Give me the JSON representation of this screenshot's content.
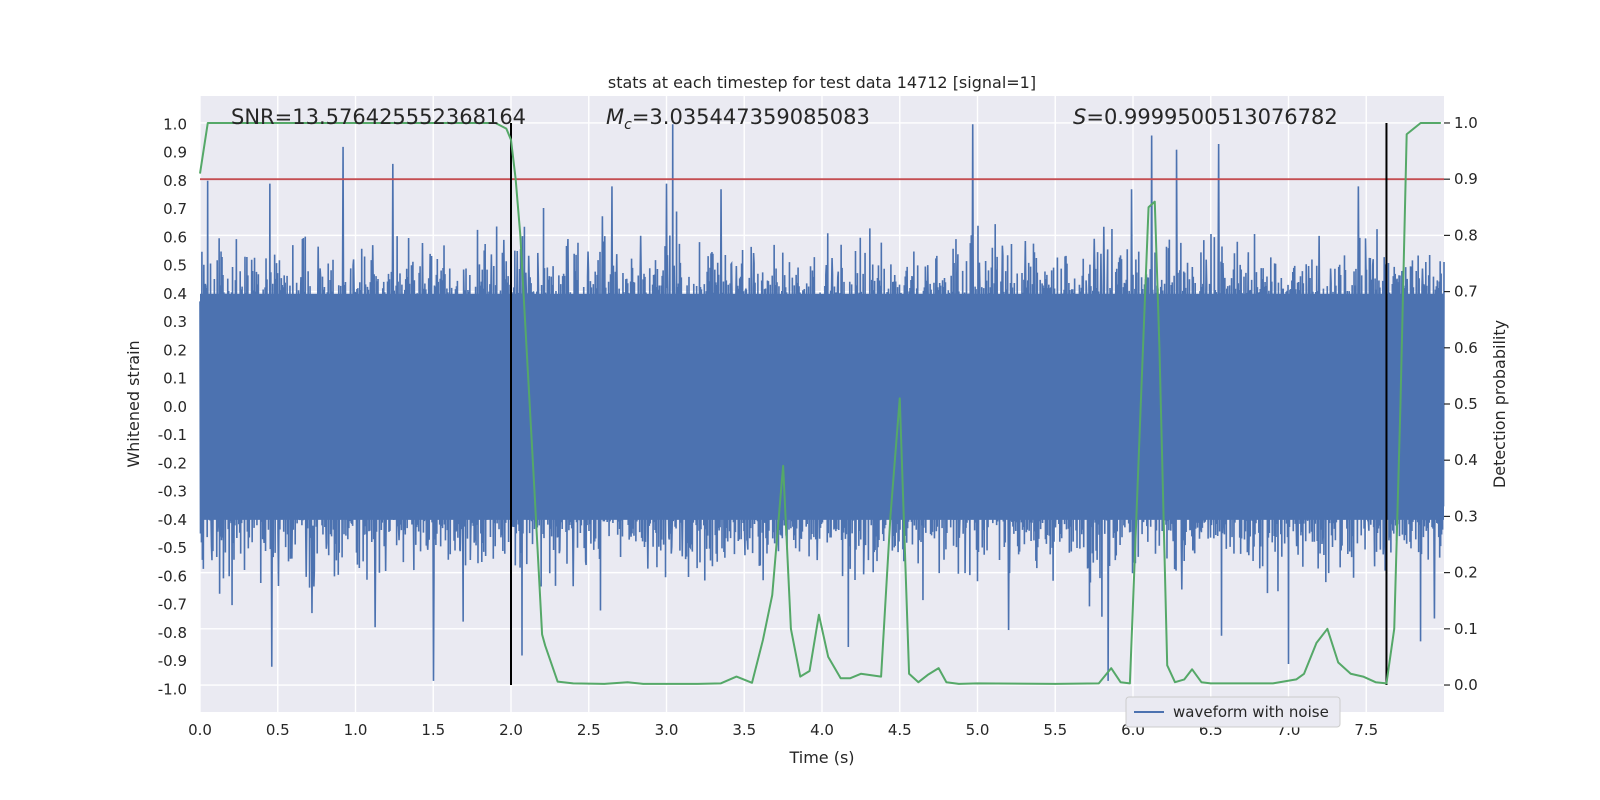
{
  "chart_data": {
    "type": "line",
    "title": "stats at each timestep for test data 14712 [signal=1]",
    "xlabel": "Time (s)",
    "ylabel": "Whitened strain",
    "y2label": "Detection probability",
    "xlim": [
      0.0,
      8.0
    ],
    "ylim": [
      -1.08,
      1.1
    ],
    "y2lim": [
      -0.048,
      1.048
    ],
    "xticks": [
      0.0,
      0.5,
      1.0,
      1.5,
      2.0,
      2.5,
      3.0,
      3.5,
      4.0,
      4.5,
      5.0,
      5.5,
      6.0,
      6.5,
      7.0,
      7.5
    ],
    "xtick_labels": [
      "0.0",
      "0.5",
      "1.0",
      "1.5",
      "2.0",
      "2.5",
      "3.0",
      "3.5",
      "4.0",
      "4.5",
      "5.0",
      "5.5",
      "6.0",
      "6.5",
      "7.0",
      "7.5"
    ],
    "yticks": [
      1.0,
      0.9,
      0.8,
      0.7,
      0.6,
      0.5,
      0.4,
      0.3,
      0.2,
      0.1,
      0.0,
      -0.1,
      -0.2,
      -0.3,
      -0.4,
      -0.5,
      -0.6,
      -0.7,
      -0.8,
      -0.9,
      -1.0
    ],
    "ytick_labels": [
      "1.0",
      "0.9",
      "0.8",
      "0.7",
      "0.6",
      "0.5",
      "0.4",
      "0.3",
      "0.2",
      "0.1",
      "0.0",
      "-0.1",
      "-0.2",
      "-0.3",
      "-0.4",
      "-0.5",
      "-0.6",
      "-0.7",
      "-0.8",
      "-0.9",
      "-1.0"
    ],
    "y2ticks": [
      1.0,
      0.9,
      0.8,
      0.7,
      0.6,
      0.5,
      0.4,
      0.3,
      0.2,
      0.1,
      0.0
    ],
    "y2tick_labels": [
      "1.0",
      "0.9",
      "0.8",
      "0.7",
      "0.6",
      "0.5",
      "0.4",
      "0.3",
      "0.2",
      "0.1",
      "0.0"
    ],
    "grid": true,
    "legend_location": "lower-right",
    "annotations": {
      "snr": "SNR=13.576425552368164",
      "mc_symbol": "M",
      "mc_subscript": "c",
      "mc_value": "=3.035447359085083",
      "s_symbol": "S",
      "s_value": "=0.9999500513076782"
    },
    "series": [
      {
        "name": "waveform with noise",
        "color": "#4c72b0",
        "axis": "left",
        "kind": "noise",
        "typical_envelope": [
          -0.4,
          0.4
        ],
        "peaks": [
          {
            "x": 0.46,
            "y": -0.92
          },
          {
            "x": 0.92,
            "y": 0.92
          },
          {
            "x": 1.24,
            "y": 0.86
          },
          {
            "x": 1.5,
            "y": -0.97
          },
          {
            "x": 3.04,
            "y": 1.0
          },
          {
            "x": 4.17,
            "y": -0.85
          },
          {
            "x": 4.97,
            "y": 1.0
          },
          {
            "x": 5.84,
            "y": -0.97
          },
          {
            "x": 6.12,
            "y": 0.96
          },
          {
            "x": 6.28,
            "y": 0.91
          },
          {
            "x": 6.55,
            "y": 0.93
          },
          {
            "x": 6.57,
            "y": -0.81
          },
          {
            "x": 7.0,
            "y": -0.91
          },
          {
            "x": 7.85,
            "y": -0.83
          },
          {
            "x": 0.05,
            "y": 0.8
          },
          {
            "x": 0.45,
            "y": 0.79
          },
          {
            "x": 3.0,
            "y": 0.79
          },
          {
            "x": 2.65,
            "y": 0.78
          },
          {
            "x": 0.72,
            "y": -0.73
          },
          {
            "x": 5.99,
            "y": 0.77
          },
          {
            "x": 2.07,
            "y": -0.88
          },
          {
            "x": 3.35,
            "y": 0.77
          },
          {
            "x": 5.2,
            "y": -0.79
          },
          {
            "x": 7.45,
            "y": 0.78
          }
        ]
      },
      {
        "name": "detection probability",
        "color": "#55a868",
        "axis": "right",
        "x": [
          0.0,
          0.05,
          0.1,
          0.5,
          1.0,
          1.5,
          1.8,
          1.9,
          1.97,
          2.0,
          2.03,
          2.06,
          2.1,
          2.15,
          2.2,
          2.22,
          2.3,
          2.4,
          2.6,
          2.75,
          2.85,
          3.0,
          3.2,
          3.35,
          3.45,
          3.55,
          3.62,
          3.68,
          3.75,
          3.8,
          3.86,
          3.92,
          3.98,
          4.04,
          4.12,
          4.18,
          4.25,
          4.38,
          4.44,
          4.5,
          4.56,
          4.62,
          4.68,
          4.75,
          4.8,
          4.88,
          5.0,
          5.5,
          5.78,
          5.86,
          5.92,
          5.98,
          6.05,
          6.1,
          6.14,
          6.17,
          6.22,
          6.27,
          6.33,
          6.38,
          6.44,
          6.5,
          6.7,
          6.9,
          7.05,
          7.1,
          7.18,
          7.25,
          7.32,
          7.4,
          7.48,
          7.56,
          7.63,
          7.68,
          7.72,
          7.76,
          7.85,
          7.98
        ],
        "values": [
          0.91,
          1.0,
          1.0,
          1.0,
          1.0,
          1.0,
          1.0,
          1.0,
          0.99,
          0.97,
          0.9,
          0.8,
          0.6,
          0.35,
          0.09,
          0.07,
          0.006,
          0.003,
          0.002,
          0.005,
          0.002,
          0.002,
          0.002,
          0.003,
          0.015,
          0.004,
          0.08,
          0.16,
          0.39,
          0.1,
          0.015,
          0.025,
          0.125,
          0.05,
          0.012,
          0.012,
          0.02,
          0.015,
          0.3,
          0.51,
          0.02,
          0.005,
          0.018,
          0.03,
          0.005,
          0.002,
          0.003,
          0.002,
          0.003,
          0.03,
          0.005,
          0.003,
          0.5,
          0.85,
          0.86,
          0.6,
          0.035,
          0.005,
          0.01,
          0.028,
          0.005,
          0.003,
          0.003,
          0.003,
          0.01,
          0.02,
          0.075,
          0.1,
          0.04,
          0.02,
          0.015,
          0.005,
          0.003,
          0.1,
          0.5,
          0.98,
          1.0,
          1.0
        ]
      },
      {
        "name": "threshold",
        "color": "#c44e52",
        "axis": "right",
        "kind": "hline",
        "value": 0.9
      },
      {
        "name": "event markers",
        "color": "#000000",
        "axis": "right",
        "kind": "vlines",
        "x": [
          2.0,
          7.63
        ],
        "y_range": [
          0.0,
          1.0
        ]
      }
    ]
  }
}
